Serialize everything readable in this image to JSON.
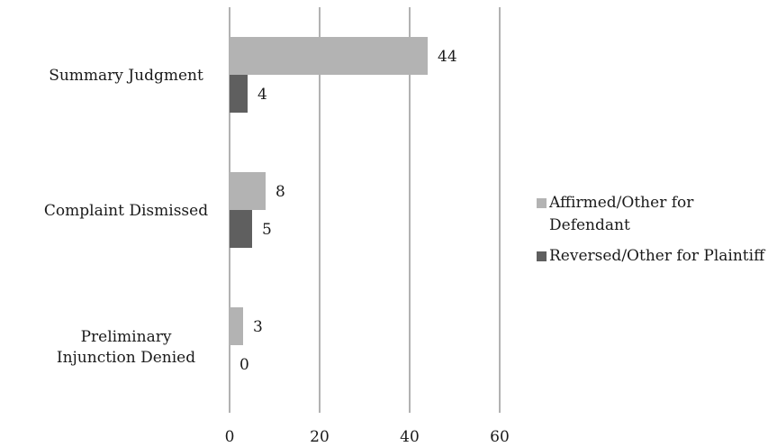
{
  "chart_data": {
    "type": "bar",
    "orientation": "horizontal",
    "categories": [
      "Summary Judgment",
      "Complaint Dismissed",
      "Preliminary Injunction Denied"
    ],
    "series": [
      {
        "name": "Affirmed/Other for Defendant",
        "values": [
          44,
          8,
          3
        ],
        "color": "#b3b3b3"
      },
      {
        "name": "Reversed/Other for Plaintiff",
        "values": [
          4,
          5,
          0
        ],
        "color": "#5f5f5f"
      }
    ],
    "x_ticks": [
      "0",
      "20",
      "40",
      "60"
    ],
    "xlim": [
      0,
      60
    ],
    "grid": true,
    "legend_position": "right",
    "data_labels": true
  }
}
